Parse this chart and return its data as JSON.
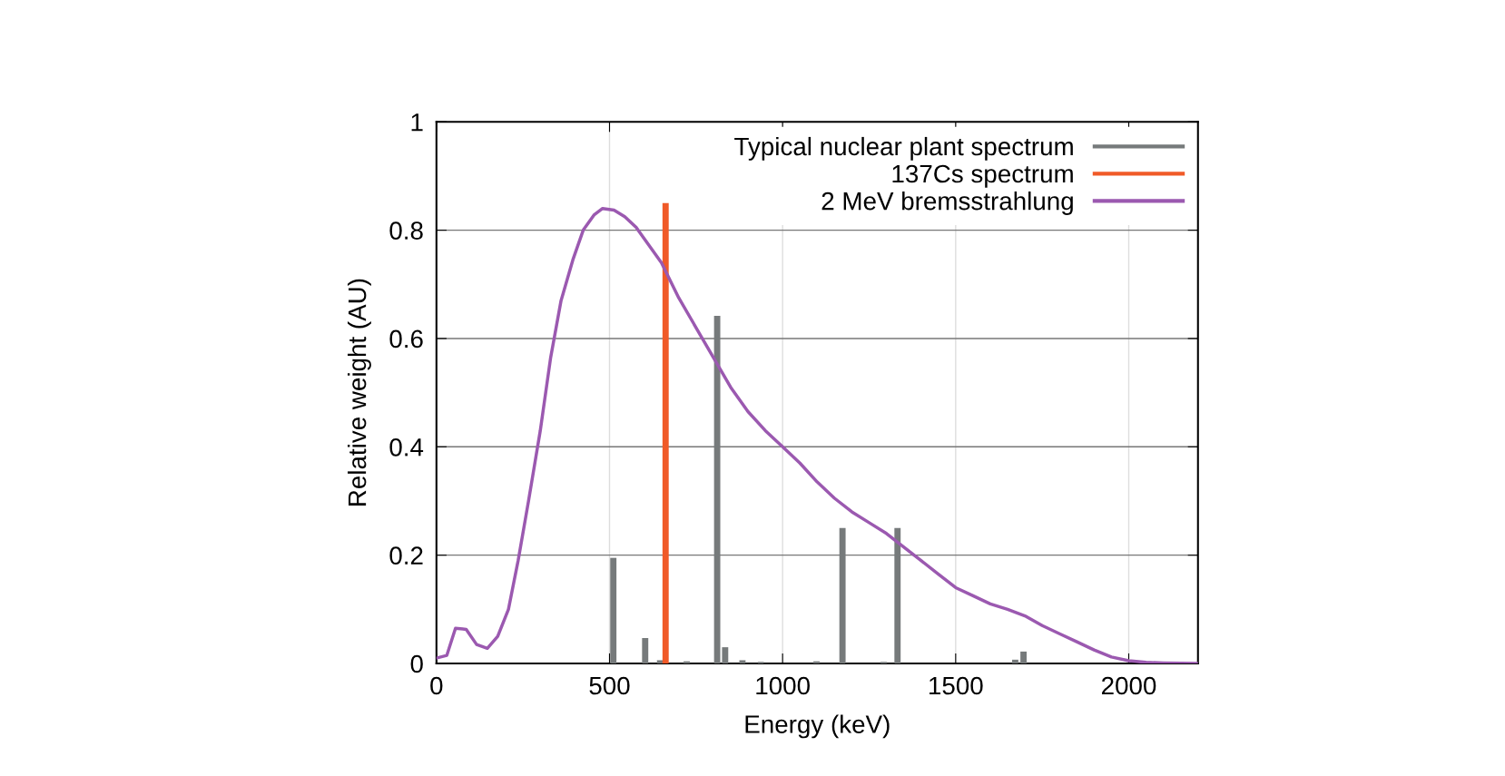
{
  "chart_data": {
    "type": "line",
    "xlabel": "Energy (keV)",
    "ylabel": "Relative weight (AU)",
    "xlim": [
      0,
      2200
    ],
    "xticks": [
      0,
      500,
      1000,
      1500,
      2000
    ],
    "ylim": [
      0,
      1
    ],
    "yticks": [
      0,
      0.2,
      0.4,
      0.6,
      0.8,
      1
    ],
    "grid": true,
    "legend": "top right",
    "series": [
      {
        "name": "Typical nuclear plant spectrum",
        "type": "bar",
        "color": "#767a7b",
        "x": [
          511,
          603,
          646,
          723,
          811,
          834,
          884,
          937,
          1098,
          1173,
          1292,
          1332,
          1672,
          1696
        ],
        "values": [
          0.195,
          0.047,
          0.006,
          0.004,
          0.642,
          0.03,
          0.006,
          0.003,
          0.004,
          0.25,
          0.003,
          0.25,
          0.007,
          0.022
        ]
      },
      {
        "name": "137Cs spectrum",
        "type": "bar",
        "color": "#f05a28",
        "x": [
          662
        ],
        "values": [
          0.85
        ]
      },
      {
        "name": "2 MeV bremsstrahlung",
        "color": "#9b59b0",
        "x": [
          0,
          30,
          55,
          86,
          116,
          147,
          177,
          208,
          236,
          266,
          300,
          330,
          360,
          394,
          424,
          455,
          480,
          513,
          544,
          577,
          650,
          700,
          750,
          800,
          850,
          900,
          950,
          1000,
          1050,
          1100,
          1150,
          1200,
          1250,
          1300,
          1400,
          1450,
          1500,
          1550,
          1600,
          1650,
          1700,
          1750,
          1800,
          1850,
          1900,
          1950,
          2000,
          2050,
          2100,
          2200
        ],
        "values": [
          0.01,
          0.015,
          0.065,
          0.063,
          0.035,
          0.028,
          0.05,
          0.1,
          0.19,
          0.3,
          0.43,
          0.565,
          0.67,
          0.745,
          0.8,
          0.828,
          0.84,
          0.837,
          0.825,
          0.805,
          0.74,
          0.675,
          0.62,
          0.565,
          0.51,
          0.465,
          0.43,
          0.4,
          0.37,
          0.335,
          0.305,
          0.28,
          0.26,
          0.24,
          0.19,
          0.165,
          0.14,
          0.125,
          0.11,
          0.1,
          0.088,
          0.07,
          0.055,
          0.04,
          0.025,
          0.012,
          0.005,
          0.002,
          0.001,
          0
        ]
      }
    ]
  }
}
